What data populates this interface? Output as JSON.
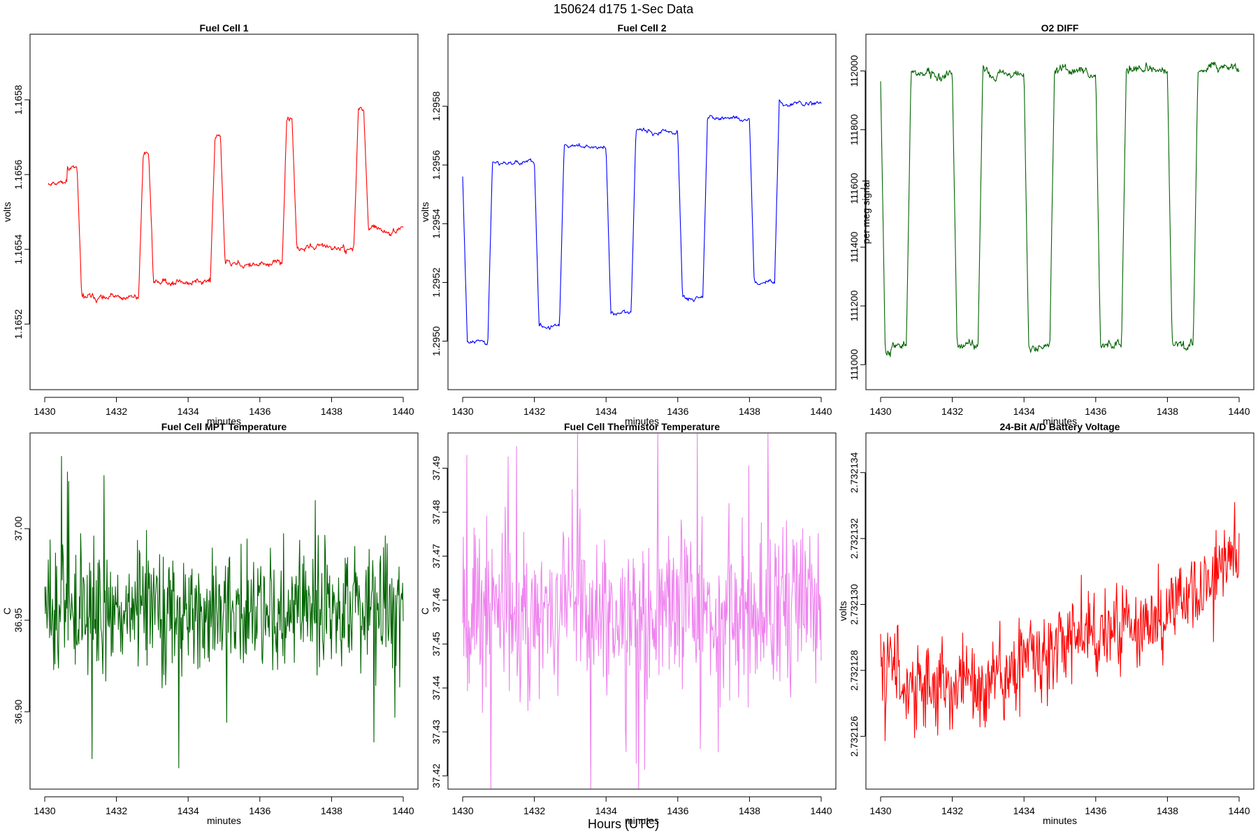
{
  "figure": {
    "suptitle": "150624   d175   1-Sec Data",
    "xlabel": "Hours (UTC)"
  },
  "chart_data": [
    {
      "type": "line",
      "title": "Fuel Cell 1",
      "xlabel": "minutes",
      "ylabel": "volts",
      "color": "#ff0000",
      "xlim": [
        1430,
        1440
      ],
      "xticks": [
        "1430",
        "1432",
        "1434",
        "1436",
        "1438",
        "1440"
      ],
      "ylim": [
        1.16506,
        1.16594
      ],
      "yticks": [
        {
          "value": 1.1652,
          "label": "1.1652"
        },
        {
          "value": 1.1654,
          "label": "1.1654"
        },
        {
          "value": 1.1656,
          "label": "1.1656"
        },
        {
          "value": 1.1658,
          "label": "1.1658"
        }
      ],
      "pattern": "square",
      "hi": 1.16562,
      "lo": 1.16527,
      "hi_step": 4e-05,
      "lo_step": 4.5e-05,
      "noise": 4.5e-06,
      "seed": 11,
      "period": 2.0,
      "t_off": 0.9,
      "t_on": 1.72,
      "x0": 1430.1,
      "x1": 1440.0,
      "start_hi": true,
      "samples": 540
    },
    {
      "type": "line",
      "title": "Fuel Cell 2",
      "xlabel": "minutes",
      "ylabel": "volts",
      "color": "#0000ff",
      "xlim": [
        1430,
        1440
      ],
      "xticks": [
        "1430",
        "1432",
        "1434",
        "1436",
        "1438",
        "1440"
      ],
      "ylim": [
        1.29488,
        1.296
      ],
      "yticks": [
        {
          "value": 1.295,
          "label": "1.2950"
        },
        {
          "value": 1.2952,
          "label": "1.2952"
        },
        {
          "value": 1.2954,
          "label": "1.2954"
        },
        {
          "value": 1.2956,
          "label": "1.2956"
        },
        {
          "value": 1.2958,
          "label": "1.2958"
        }
      ],
      "pattern": "square",
      "hi": 1.29556,
      "lo": 1.295,
      "hi_step": 5e-05,
      "lo_step": 5e-05,
      "noise": 4e-06,
      "seed": 23,
      "period": 2.0,
      "t_off": 0.0,
      "t_on": 0.7,
      "x0": 1430.0,
      "x1": 1440.0,
      "start_hi": false,
      "samples": 540
    },
    {
      "type": "line",
      "title": "O2 DIFF",
      "xlabel": "minutes",
      "ylabel": "per meg signal",
      "color": "#006400",
      "xlim": [
        1430,
        1440
      ],
      "xticks": [
        "1430",
        "1432",
        "1434",
        "1436",
        "1438",
        "1440"
      ],
      "ylim": [
        110960,
        112080
      ],
      "yticks": [
        {
          "value": 111000,
          "label": "111000"
        },
        {
          "value": 111200,
          "label": "111200"
        },
        {
          "value": 111400,
          "label": "111400"
        },
        {
          "value": 111600,
          "label": "111600"
        },
        {
          "value": 111800,
          "label": "111800"
        },
        {
          "value": 112000,
          "label": "112000"
        }
      ],
      "pattern": "square",
      "hi": 111980,
      "lo": 111060,
      "hi_step": 6,
      "lo_step": 5,
      "noise": 9,
      "seed": 37,
      "period": 2.0,
      "t_off": 0.0,
      "t_on": 0.72,
      "x0": 1430.0,
      "x1": 1440.0,
      "start_hi": false,
      "samples": 560
    },
    {
      "type": "line",
      "title": "Fuel Cell MPT Temperature",
      "xlabel": "minutes",
      "ylabel": "C",
      "color": "#006400",
      "xlim": [
        1430,
        1440
      ],
      "xticks": [
        "1430",
        "1432",
        "1434",
        "1436",
        "1438",
        "1440"
      ],
      "ylim": [
        36.865,
        37.045
      ],
      "yticks": [
        {
          "value": 36.9,
          "label": "36.90"
        },
        {
          "value": 36.95,
          "label": "36.95"
        },
        {
          "value": 37.0,
          "label": "37.00"
        }
      ],
      "pattern": "noise",
      "mean": 36.955,
      "amp": 0.022,
      "seed": 51,
      "x0": 1430.0,
      "x1": 1440.0,
      "samples": 600
    },
    {
      "type": "line",
      "title": "Fuel Cell Thermistor Temperature",
      "xlabel": "minutes",
      "ylabel": "C",
      "color": "#ee82ee",
      "xlim": [
        1430,
        1440
      ],
      "xticks": [
        "1430",
        "1432",
        "1434",
        "1436",
        "1438",
        "1440"
      ],
      "ylim": [
        37.42,
        37.495
      ],
      "yticks": [
        {
          "value": 37.42,
          "label": "37.42"
        },
        {
          "value": 37.43,
          "label": "37.43"
        },
        {
          "value": 37.44,
          "label": "37.44"
        },
        {
          "value": 37.45,
          "label": "37.45"
        },
        {
          "value": 37.46,
          "label": "37.46"
        },
        {
          "value": 37.47,
          "label": "37.47"
        },
        {
          "value": 37.48,
          "label": "37.48"
        },
        {
          "value": 37.49,
          "label": "37.49"
        }
      ],
      "pattern": "noise",
      "mean": 37.458,
      "amp": 0.0115,
      "seed": 67,
      "x0": 1430.0,
      "x1": 1440.0,
      "samples": 600
    },
    {
      "type": "line",
      "title": "24-Bit A/D Battery Voltage",
      "xlabel": "minutes",
      "ylabel": "volts",
      "color": "#ff0000",
      "xlim": [
        1430,
        1440
      ],
      "xticks": [
        "1430",
        "1432",
        "1434",
        "1436",
        "1438",
        "1440"
      ],
      "ylim": [
        2.7321248,
        2.7321348
      ],
      "yticks": [
        {
          "value": 2.732126,
          "label": "2.732126"
        },
        {
          "value": 2.732128,
          "label": "2.732128"
        },
        {
          "value": 2.73213,
          "label": "2.732130"
        },
        {
          "value": 2.732132,
          "label": "2.732132"
        },
        {
          "value": 2.732134,
          "label": "2.732134"
        }
      ],
      "pattern": "trend",
      "trend_x": [
        1430.0,
        1431.5,
        1433.0,
        1434.0,
        1436.0,
        1438.0,
        1439.0,
        1440.0
      ],
      "trend_y": [
        2.7321282,
        2.7321275,
        2.7321274,
        2.7321285,
        2.7321292,
        2.7321297,
        2.7321304,
        2.7321322
      ],
      "amp": 9e-07,
      "seed": 83,
      "x0": 1430.0,
      "x1": 1440.0,
      "samples": 560
    }
  ]
}
